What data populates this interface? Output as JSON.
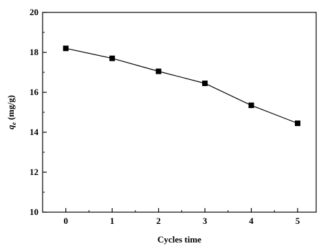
{
  "chart_data": {
    "type": "line",
    "title": "",
    "xlabel": "Cycles time",
    "ylabel_symbol": "q",
    "ylabel_subscript": "e",
    "ylabel_unit": " (mg/g)",
    "xlim": [
      -0.5,
      5.4
    ],
    "ylim": [
      10,
      20
    ],
    "xticks": [
      0,
      1,
      2,
      3,
      4,
      5
    ],
    "yticks": [
      10,
      12,
      14,
      16,
      18,
      20
    ],
    "grid": false,
    "legend": "none",
    "series": [
      {
        "x": [
          0,
          1,
          2,
          3,
          4,
          5
        ],
        "y": [
          18.2,
          17.7,
          17.05,
          16.45,
          15.35,
          14.45
        ]
      }
    ]
  }
}
